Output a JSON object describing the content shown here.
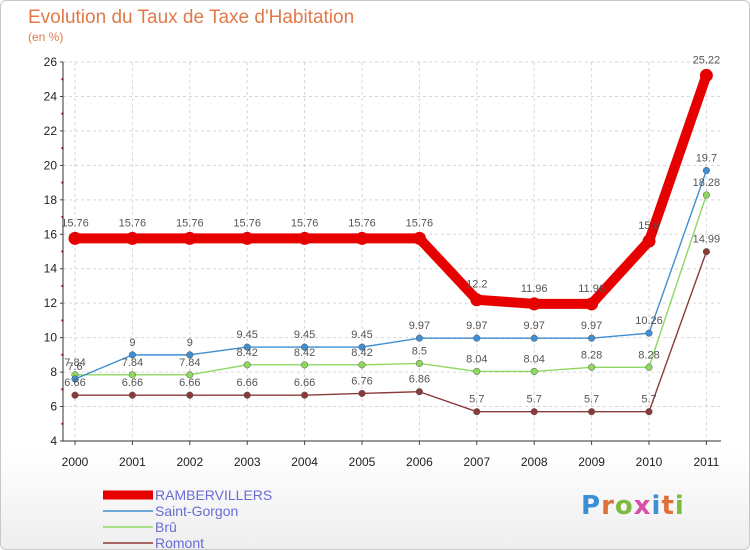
{
  "header": {
    "title": "Evolution du Taux de Taxe d'Habitation",
    "subtitle": "(en %)"
  },
  "logo": {
    "text": "Proxiti",
    "letter_colors": [
      "#3a8fd6",
      "#e0703a",
      "#7dbb3e",
      "#d94fa8",
      "#3a8fd6",
      "#e0703a",
      "#7dbb3e"
    ]
  },
  "chart_data": {
    "type": "line",
    "title": "Evolution du Taux de Taxe d'Habitation",
    "ylabel": "(en %)",
    "xlabel": "",
    "x": [
      "2000",
      "2001",
      "2002",
      "2003",
      "2004",
      "2005",
      "2006",
      "2007",
      "2008",
      "2009",
      "2010",
      "2011"
    ],
    "ylim": [
      4,
      26
    ],
    "yticks": [
      4,
      6,
      8,
      10,
      12,
      14,
      16,
      18,
      20,
      22,
      24,
      26
    ],
    "grid": true,
    "legend": "bottom-left",
    "series": [
      {
        "name": "RAMBERVILLERS",
        "color": "#e60000",
        "values": [
          15.76,
          15.76,
          15.76,
          15.76,
          15.76,
          15.76,
          15.76,
          12.2,
          11.96,
          11.96,
          15.6,
          25.22
        ],
        "labels": [
          "15.76",
          "15.76",
          "15.76",
          "15.76",
          "15.76",
          "15.76",
          "15.76",
          "12.2",
          "11.96",
          "11.96",
          "15.6",
          "25.22"
        ]
      },
      {
        "name": "Saint-Gorgon",
        "color": "#3f8fd2",
        "values": [
          7.6,
          9,
          9,
          9.45,
          9.45,
          9.45,
          9.97,
          9.97,
          9.97,
          9.97,
          10.26,
          19.7
        ],
        "labels": [
          "7.6",
          "9",
          "9",
          "9.45",
          "9.45",
          "9.45",
          "9.97",
          "9.97",
          "9.97",
          "9.97",
          "10.26",
          "19.7"
        ]
      },
      {
        "name": "Brû",
        "color": "#8fd860",
        "values": [
          7.84,
          7.84,
          7.84,
          8.42,
          8.42,
          8.42,
          8.5,
          8.04,
          8.04,
          8.28,
          8.28,
          18.28
        ],
        "labels": [
          "7.84",
          "7.84",
          "7.84",
          "8.42",
          "8.42",
          "8.42",
          "8.5",
          "8.04",
          "8.04",
          "8.28",
          "8.28",
          "18.28"
        ]
      },
      {
        "name": "Romont",
        "color": "#8b3a3a",
        "values": [
          6.66,
          6.66,
          6.66,
          6.66,
          6.66,
          6.76,
          6.86,
          5.7,
          5.7,
          5.7,
          5.7,
          14.99
        ],
        "labels": [
          "6.66",
          "6.66",
          "6.66",
          "6.66",
          "6.66",
          "6.76",
          "6.86",
          "5.7",
          "5.7",
          "5.7",
          "5.7",
          "14.99"
        ]
      }
    ]
  }
}
